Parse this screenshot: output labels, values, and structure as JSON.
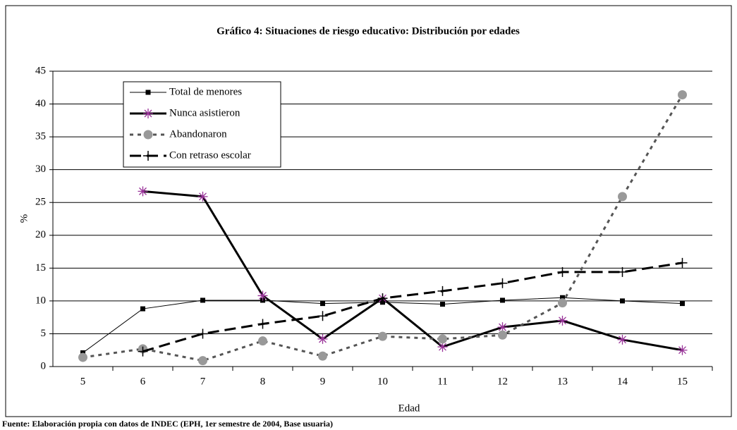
{
  "chart_data": {
    "type": "line",
    "title": "Gráfico 4: Situaciones de riesgo educativo: Distribución por edades",
    "x_label": "Edad",
    "y_label": "%",
    "source": "Fuente: Elaboración propia con datos de INDEC (EPH, 1er semestre de 2004, Base usuaria)",
    "categories": [
      "5",
      "6",
      "7",
      "8",
      "9",
      "10",
      "11",
      "12",
      "13",
      "14",
      "15"
    ],
    "ylim": [
      0,
      45
    ],
    "yticks": [
      0,
      5,
      10,
      15,
      20,
      25,
      30,
      35,
      40,
      45
    ],
    "grid": true,
    "legend": "upper left",
    "series": [
      {
        "name": "Total de menores",
        "color": "#000000",
        "marker_color": "#000000",
        "marker": "square",
        "line_style": "solid-thin",
        "values": [
          2.1,
          8.8,
          10.1,
          10.1,
          9.6,
          9.8,
          9.5,
          10.1,
          10.5,
          10.0,
          9.6
        ]
      },
      {
        "name": "Nunca asistieron",
        "color": "#000000",
        "marker_color": "#993399",
        "marker": "asterisk",
        "line_style": "solid-thick",
        "values": [
          null,
          26.7,
          25.9,
          10.8,
          4.2,
          10.4,
          3.0,
          6.0,
          7.0,
          4.1,
          2.5
        ]
      },
      {
        "name": "Abandonaron",
        "color": "#555555",
        "marker_color": "#999999",
        "marker": "circle",
        "line_style": "dotted",
        "values": [
          1.4,
          2.7,
          0.9,
          3.9,
          1.6,
          4.6,
          4.2,
          4.8,
          9.7,
          25.9,
          41.4
        ]
      },
      {
        "name": "Con retraso escolar",
        "color": "#000000",
        "marker_color": "#000000",
        "marker": "plus",
        "line_style": "dashed",
        "values": [
          null,
          2.3,
          5.0,
          6.5,
          7.7,
          10.4,
          11.5,
          12.7,
          14.4,
          14.4,
          15.8
        ]
      }
    ]
  }
}
